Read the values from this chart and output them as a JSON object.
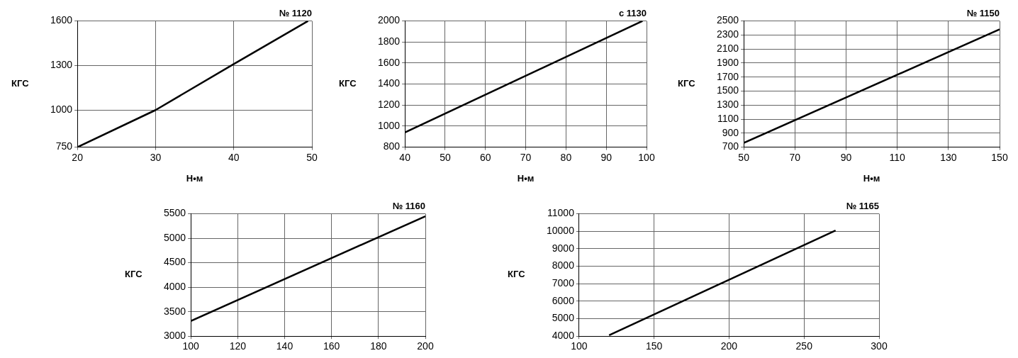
{
  "chart_data": [
    {
      "type": "line",
      "title": "№ 1120",
      "xlabel": "Н•м",
      "ylabel": "КГС",
      "x": [
        20,
        30,
        40,
        49.5
      ],
      "values": [
        750,
        1000,
        1310,
        1600
      ],
      "color": "#000000",
      "xlim": [
        20,
        50
      ],
      "xticks": [
        20,
        30,
        40,
        50
      ],
      "ylim": [
        750,
        1600
      ],
      "yticks": [
        750,
        1000,
        1300,
        1600
      ],
      "grid": true,
      "marker": "none",
      "line_style": "solid"
    },
    {
      "type": "line",
      "title": "c 1130",
      "xlabel": "Н•м",
      "ylabel": "КГС",
      "x": [
        40,
        99
      ],
      "values": [
        940,
        2000
      ],
      "color": "#000000",
      "xlim": [
        40,
        100
      ],
      "xticks": [
        40,
        50,
        60,
        70,
        80,
        90,
        100
      ],
      "ylim": [
        800,
        2000
      ],
      "yticks": [
        800,
        1000,
        1200,
        1400,
        1600,
        1800,
        2000
      ],
      "grid": true,
      "marker": "none",
      "line_style": "solid"
    },
    {
      "type": "line",
      "title": "№ 1150",
      "xlabel": "Н•м",
      "ylabel": "КГС",
      "x": [
        50,
        150
      ],
      "values": [
        760,
        2380
      ],
      "color": "#000000",
      "xlim": [
        50,
        150
      ],
      "xticks": [
        50,
        70,
        90,
        110,
        130,
        150
      ],
      "ylim": [
        700,
        2500
      ],
      "yticks": [
        700,
        900,
        1100,
        1300,
        1500,
        1700,
        1900,
        2100,
        2300,
        2500
      ],
      "grid": true,
      "marker": "none",
      "line_style": "solid"
    },
    {
      "type": "line",
      "title": "№ 1160",
      "ylabel": "КГС",
      "x": [
        100,
        200
      ],
      "values": [
        3310,
        5450
      ],
      "color": "#000000",
      "xlim": [
        100,
        200
      ],
      "xticks": [
        100,
        120,
        140,
        160,
        180,
        200
      ],
      "ylim": [
        3000,
        5500
      ],
      "yticks": [
        3000,
        3500,
        4000,
        4500,
        5000,
        5500
      ],
      "grid": true,
      "marker": "none",
      "line_style": "solid"
    },
    {
      "type": "line",
      "title": "№ 1165",
      "ylabel": "КГС",
      "x": [
        120,
        271
      ],
      "values": [
        4050,
        10050
      ],
      "color": "#000000",
      "xlim": [
        100,
        300
      ],
      "xticks": [
        100,
        150,
        200,
        250,
        300
      ],
      "ylim": [
        4000,
        11000
      ],
      "yticks": [
        4000,
        5000,
        6000,
        7000,
        8000,
        9000,
        10000,
        11000
      ],
      "grid": true,
      "marker": "none",
      "line_style": "solid"
    }
  ]
}
